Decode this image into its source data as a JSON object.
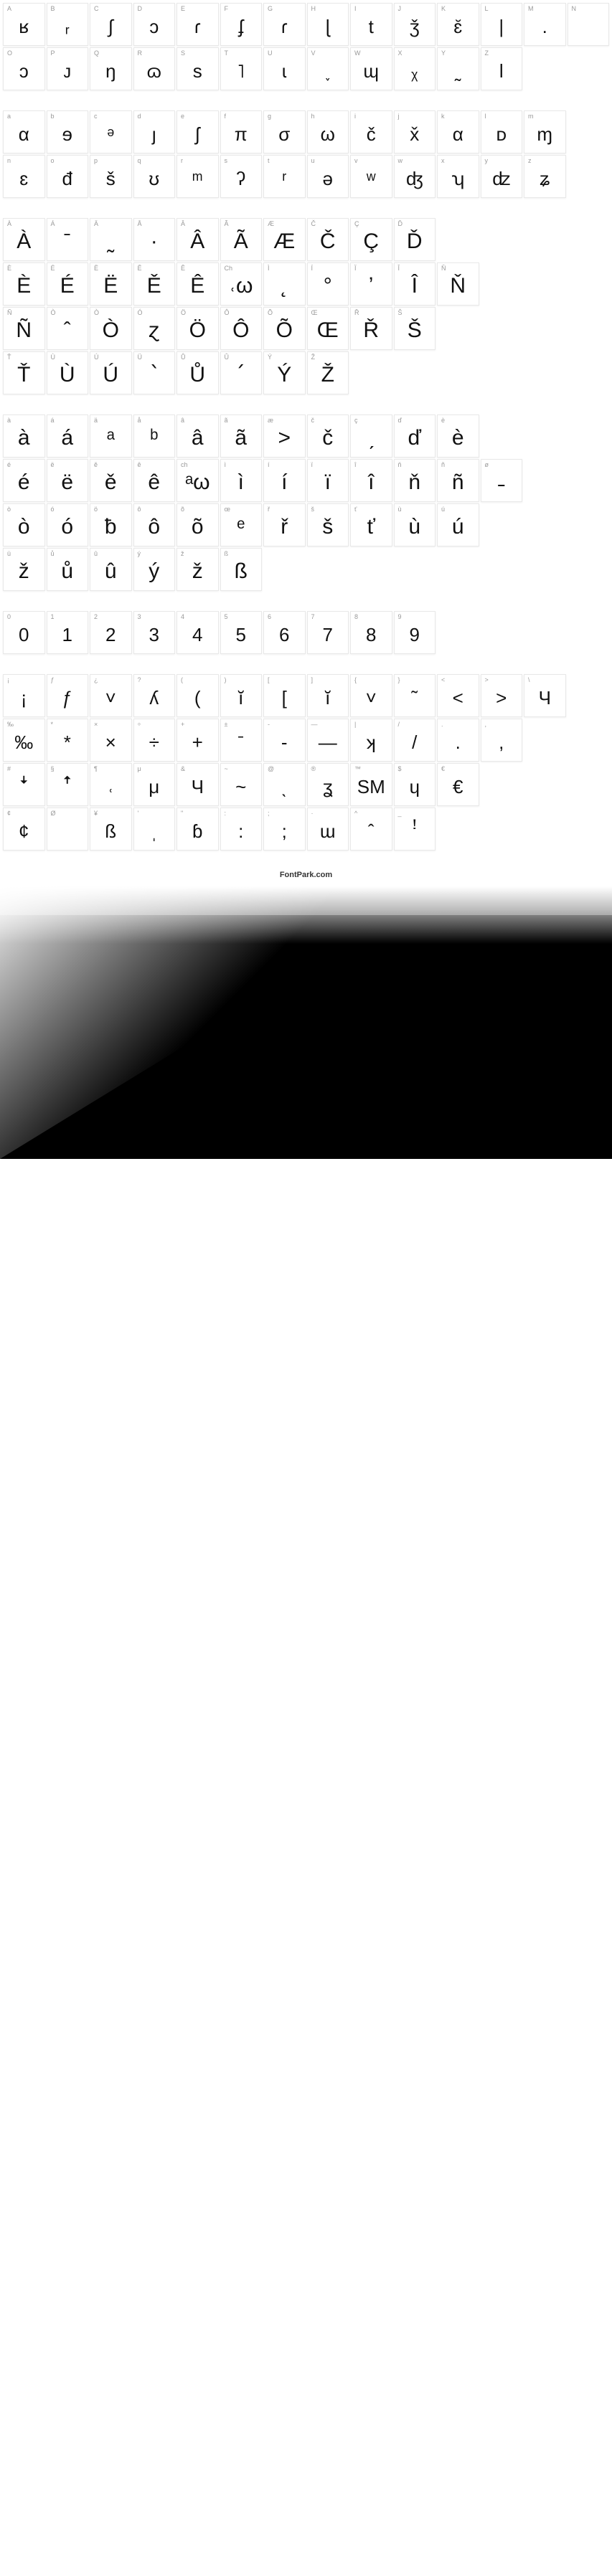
{
  "footer": "FontPark.com",
  "colors": {
    "cell_border": "#e8e8e8",
    "label_text": "#999999",
    "glyph_text": "#111111",
    "background": "#ffffff"
  },
  "sections": [
    {
      "rows": [
        [
          {
            "l": "A",
            "g": "ʁ"
          },
          {
            "l": "B",
            "g": "ᵣ"
          },
          {
            "l": "C",
            "g": "∫"
          },
          {
            "l": "D",
            "g": "ᴐ"
          },
          {
            "l": "E",
            "g": "ɾ"
          },
          {
            "l": "F",
            "g": "ʄ"
          },
          {
            "l": "G",
            "g": "ɾ"
          },
          {
            "l": "H",
            "g": "ɭ"
          },
          {
            "l": "I",
            "g": "t"
          },
          {
            "l": "J",
            "g": "ǯ"
          },
          {
            "l": "K",
            "g": "ɛ̆"
          },
          {
            "l": "L",
            "g": "|"
          },
          {
            "l": "M",
            "g": "."
          },
          {
            "l": "N",
            "g": ""
          }
        ],
        [
          {
            "l": "O",
            "g": "ɔ"
          },
          {
            "l": "P",
            "g": "ᴊ"
          },
          {
            "l": "Q",
            "g": "ŋ"
          },
          {
            "l": "R",
            "g": "ɷ"
          },
          {
            "l": "S",
            "g": "s"
          },
          {
            "l": "T",
            "g": "˥"
          },
          {
            "l": "U",
            "g": "ɩ"
          },
          {
            "l": "V",
            "g": "˯"
          },
          {
            "l": "W",
            "g": "ɰ"
          },
          {
            "l": "X",
            "g": "ᵪ"
          },
          {
            "l": "Y",
            "g": "˷"
          },
          {
            "l": "Z",
            "g": "l"
          }
        ]
      ]
    },
    {
      "rows": [
        [
          {
            "l": "a",
            "g": "α"
          },
          {
            "l": "b",
            "g": "ɘ"
          },
          {
            "l": "c",
            "g": "ᵊ"
          },
          {
            "l": "d",
            "g": "ȷ"
          },
          {
            "l": "e",
            "g": "ʃ"
          },
          {
            "l": "f",
            "g": "π"
          },
          {
            "l": "g",
            "g": "σ"
          },
          {
            "l": "h",
            "g": "ω"
          },
          {
            "l": "i",
            "g": "č"
          },
          {
            "l": "j",
            "g": "x̌"
          },
          {
            "l": "k",
            "g": "α"
          },
          {
            "l": "l",
            "g": "ᴅ"
          },
          {
            "l": "m",
            "g": "ɱ"
          }
        ],
        [
          {
            "l": "n",
            "g": "ɛ"
          },
          {
            "l": "o",
            "g": "đ"
          },
          {
            "l": "p",
            "g": "š"
          },
          {
            "l": "q",
            "g": "ʊ"
          },
          {
            "l": "r",
            "g": "ᵐ"
          },
          {
            "l": "s",
            "g": "ʔ"
          },
          {
            "l": "t",
            "g": "ʳ"
          },
          {
            "l": "u",
            "g": "ə"
          },
          {
            "l": "v",
            "g": "ʷ"
          },
          {
            "l": "w",
            "g": "ʤ"
          },
          {
            "l": "x",
            "g": "ʮ"
          },
          {
            "l": "y",
            "g": "ʣ"
          },
          {
            "l": "z",
            "g": "ʑ"
          }
        ]
      ]
    },
    {
      "big": true,
      "rows": [
        [
          {
            "l": "À",
            "g": "À"
          },
          {
            "l": "Á",
            "g": "ˉ"
          },
          {
            "l": "Ä",
            "g": "˷"
          },
          {
            "l": "Å",
            "g": "·"
          },
          {
            "l": "Â",
            "g": "Â"
          },
          {
            "l": "Ã",
            "g": "Ã"
          },
          {
            "l": "Æ",
            "g": "Æ"
          },
          {
            "l": "Č",
            "g": "Č"
          },
          {
            "l": "Ç",
            "g": "Ç"
          },
          {
            "l": "Ď",
            "g": "Ď"
          }
        ],
        [
          {
            "l": "È",
            "g": "È"
          },
          {
            "l": "É",
            "g": "É"
          },
          {
            "l": "Ë",
            "g": "Ë"
          },
          {
            "l": "Ě",
            "g": "Ě"
          },
          {
            "l": "Ê",
            "g": "Ê"
          },
          {
            "l": "Ch",
            "g": "˓ω"
          },
          {
            "l": "Ì",
            "g": "˛"
          },
          {
            "l": "Í",
            "g": "°"
          },
          {
            "l": "Ï",
            "g": "ʼ"
          },
          {
            "l": "Î",
            "g": "Î"
          },
          {
            "l": "Ň",
            "g": "Ň"
          }
        ],
        [
          {
            "l": "Ñ",
            "g": "Ñ"
          },
          {
            "l": "Ò",
            "g": "ˆ"
          },
          {
            "l": "Ò",
            "g": "Ò"
          },
          {
            "l": "Ó",
            "g": "ɀ"
          },
          {
            "l": "Ö",
            "g": "Ö"
          },
          {
            "l": "Ô",
            "g": "Ô"
          },
          {
            "l": "Õ",
            "g": "Õ"
          },
          {
            "l": "Œ",
            "g": "Œ"
          },
          {
            "l": "Ř",
            "g": "Ř"
          },
          {
            "l": "Š",
            "g": "Š"
          }
        ],
        [
          {
            "l": "Ť",
            "g": "Ť"
          },
          {
            "l": "Ù",
            "g": "Ù"
          },
          {
            "l": "Ú",
            "g": "Ú"
          },
          {
            "l": "Ü",
            "g": "՝"
          },
          {
            "l": "Ů",
            "g": "Ů"
          },
          {
            "l": "Û",
            "g": "՛"
          },
          {
            "l": "Ý",
            "g": "Ý"
          },
          {
            "l": "Ž",
            "g": "Ž"
          }
        ]
      ]
    },
    {
      "big": true,
      "rows": [
        [
          {
            "l": "à",
            "g": "à"
          },
          {
            "l": "á",
            "g": "á"
          },
          {
            "l": "ä",
            "g": "ᵃ"
          },
          {
            "l": "å",
            "g": "ᵇ"
          },
          {
            "l": "â",
            "g": "â"
          },
          {
            "l": "ã",
            "g": "ã"
          },
          {
            "l": "æ",
            "g": "˃"
          },
          {
            "l": "č",
            "g": "č"
          },
          {
            "l": "ç",
            "g": "ˏ"
          },
          {
            "l": "ď",
            "g": "ď"
          },
          {
            "l": "è",
            "g": "è"
          }
        ],
        [
          {
            "l": "é",
            "g": "é"
          },
          {
            "l": "ë",
            "g": "ë"
          },
          {
            "l": "ě",
            "g": "ě"
          },
          {
            "l": "ê",
            "g": "ê"
          },
          {
            "l": "ch",
            "g": "ᵃω"
          },
          {
            "l": "ì",
            "g": "ì"
          },
          {
            "l": "í",
            "g": "í"
          },
          {
            "l": "ï",
            "g": "ï"
          },
          {
            "l": "î",
            "g": "î"
          },
          {
            "l": "ň",
            "g": "ň"
          },
          {
            "l": "ñ",
            "g": "ñ"
          },
          {
            "l": "ø",
            "g": "˗"
          }
        ],
        [
          {
            "l": "ò",
            "g": "ò"
          },
          {
            "l": "ó",
            "g": "ó"
          },
          {
            "l": "ö",
            "g": "ƀ"
          },
          {
            "l": "ô",
            "g": "ô"
          },
          {
            "l": "õ",
            "g": "õ"
          },
          {
            "l": "œ",
            "g": "ᵉ"
          },
          {
            "l": "ř",
            "g": "ř"
          },
          {
            "l": "š",
            "g": "š"
          },
          {
            "l": "ť",
            "g": "ť"
          },
          {
            "l": "ù",
            "g": "ù"
          },
          {
            "l": "ú",
            "g": "ú"
          }
        ],
        [
          {
            "l": "ü",
            "g": "ž"
          },
          {
            "l": "ů",
            "g": "ů"
          },
          {
            "l": "û",
            "g": "û"
          },
          {
            "l": "ý",
            "g": "ý"
          },
          {
            "l": "ž",
            "g": "ž"
          },
          {
            "l": "ß",
            "g": "ß"
          }
        ]
      ]
    },
    {
      "rows": [
        [
          {
            "l": "0",
            "g": "0"
          },
          {
            "l": "1",
            "g": "1"
          },
          {
            "l": "2",
            "g": "2"
          },
          {
            "l": "3",
            "g": "3"
          },
          {
            "l": "4",
            "g": "4"
          },
          {
            "l": "5",
            "g": "5"
          },
          {
            "l": "6",
            "g": "6"
          },
          {
            "l": "7",
            "g": "7"
          },
          {
            "l": "8",
            "g": "8"
          },
          {
            "l": "9",
            "g": "9"
          }
        ]
      ]
    },
    {
      "rows": [
        [
          {
            "l": "¡",
            "g": "¡"
          },
          {
            "l": "ƒ",
            "g": "ƒ"
          },
          {
            "l": "¿",
            "g": "˅"
          },
          {
            "l": "?",
            "g": "ʎ"
          },
          {
            "l": "(",
            "g": "("
          },
          {
            "l": ")",
            "g": "ĭ"
          },
          {
            "l": "[",
            "g": "["
          },
          {
            "l": "]",
            "g": "ĭ"
          },
          {
            "l": "{",
            "g": "˅"
          },
          {
            "l": "}",
            "g": "˜"
          },
          {
            "l": "<",
            "g": "<"
          },
          {
            "l": ">",
            "g": ">"
          },
          {
            "l": "\\",
            "g": "Ч"
          }
        ],
        [
          {
            "l": "‰",
            "g": "‰"
          },
          {
            "l": "*",
            "g": "*"
          },
          {
            "l": "×",
            "g": "×"
          },
          {
            "l": "÷",
            "g": "÷"
          },
          {
            "l": "+",
            "g": "+"
          },
          {
            "l": "±",
            "g": "ˉ"
          },
          {
            "l": "-",
            "g": "-"
          },
          {
            "l": "—",
            "g": "—"
          },
          {
            "l": "|",
            "g": "ʞ"
          },
          {
            "l": "/",
            "g": "/"
          },
          {
            "l": ".",
            "g": "."
          },
          {
            "l": ",",
            "g": ","
          }
        ],
        [
          {
            "l": "#",
            "g": "ꜜ"
          },
          {
            "l": "§",
            "g": "ꜛ"
          },
          {
            "l": "¶",
            "g": "˓"
          },
          {
            "l": "μ",
            "g": "μ"
          },
          {
            "l": "&",
            "g": "Ч"
          },
          {
            "l": "~",
            "g": "~"
          },
          {
            "l": "@",
            "g": "ˎ"
          },
          {
            "l": "®",
            "g": "ʓ"
          },
          {
            "l": "™",
            "g": "SM"
          },
          {
            "l": "$",
            "g": "ɥ"
          },
          {
            "l": "€",
            "g": "€"
          }
        ],
        [
          {
            "l": "¢",
            "g": "¢"
          },
          {
            "l": "Ø",
            "g": ""
          },
          {
            "l": "¥",
            "g": "ß"
          },
          {
            "l": "'",
            "g": "ˌ"
          },
          {
            "l": "\"",
            "g": "ɓ"
          },
          {
            "l": ":",
            "g": ":"
          },
          {
            "l": ";",
            "g": ";"
          },
          {
            "l": "·",
            "g": "ɯ"
          },
          {
            "l": "^",
            "g": "ˆ"
          },
          {
            "l": "_",
            "g": "ꜝ"
          }
        ]
      ]
    }
  ]
}
